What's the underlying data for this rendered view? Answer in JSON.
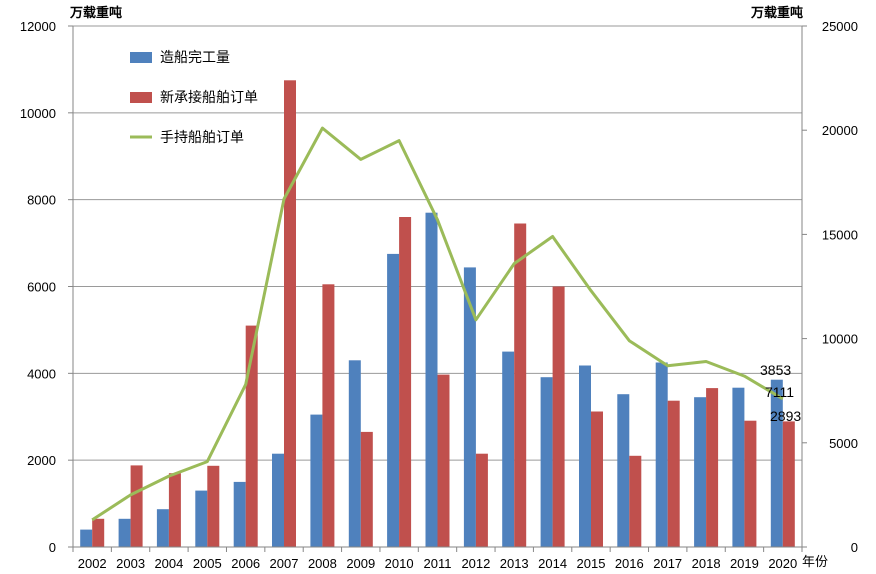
{
  "chart_data": {
    "type": "bar",
    "categories": [
      "2002",
      "2003",
      "2004",
      "2005",
      "2006",
      "2007",
      "2008",
      "2009",
      "2010",
      "2011",
      "2012",
      "2013",
      "2014",
      "2015",
      "2016",
      "2017",
      "2018",
      "2019",
      "2020"
    ],
    "x_unit": "年份",
    "y_left": {
      "unit": "万载重吨",
      "ylim": [
        0,
        12000
      ],
      "ticks": [
        0,
        2000,
        4000,
        6000,
        8000,
        10000,
        12000
      ]
    },
    "y_right": {
      "unit": "万载重吨",
      "ylim": [
        0,
        25000
      ],
      "ticks": [
        0,
        5000,
        10000,
        15000,
        20000,
        25000
      ]
    },
    "grid": true,
    "legend_position": "top-left",
    "series": [
      {
        "name": "造船完工量",
        "kind": "bar",
        "axis": "left",
        "color": "#4f81bd",
        "values": [
          400,
          650,
          870,
          1300,
          1500,
          2150,
          3050,
          4300,
          6750,
          7700,
          6440,
          4500,
          3910,
          4180,
          3520,
          4250,
          3450,
          3670,
          3853
        ]
      },
      {
        "name": "新承接船舶订单",
        "kind": "bar",
        "axis": "left",
        "color": "#c0504d",
        "values": [
          650,
          1880,
          1700,
          1870,
          5100,
          10750,
          6050,
          2650,
          7600,
          3970,
          2150,
          7450,
          6000,
          3120,
          2100,
          3370,
          3660,
          2910,
          2893
        ]
      },
      {
        "name": "手持船舶订单",
        "kind": "line",
        "axis": "right",
        "color": "#9bbb59",
        "values": [
          1300,
          2500,
          3400,
          4100,
          7800,
          16700,
          20100,
          18600,
          19500,
          15700,
          10900,
          13600,
          14900,
          12300,
          9900,
          8700,
          8900,
          8200,
          7111
        ]
      }
    ],
    "data_labels": [
      "3853",
      "7111",
      "2893"
    ]
  }
}
